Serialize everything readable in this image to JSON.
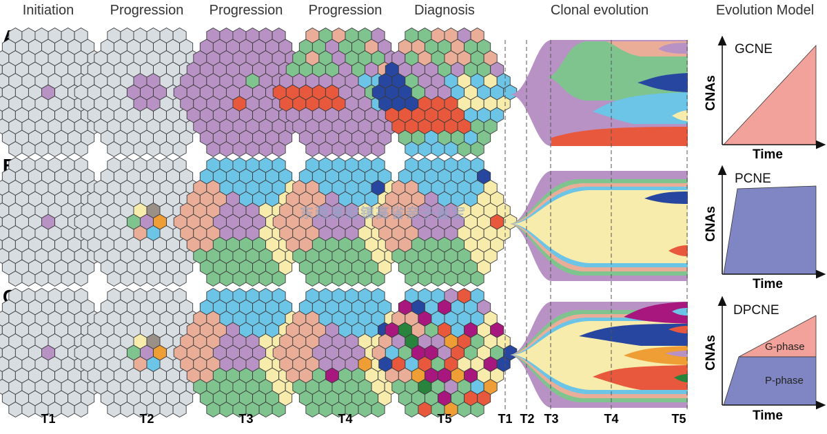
{
  "headers": [
    "Initiation",
    "Progression",
    "Progression",
    "Progression",
    "Diagnosis",
    "Clonal evolution",
    "Evolution Model"
  ],
  "rows": [
    "A",
    "B",
    "C"
  ],
  "time_labels": [
    "T1",
    "T2",
    "T3",
    "T4",
    "T5"
  ],
  "evolution_time_labels": [
    "T1",
    "T2",
    "T3",
    "T4",
    "T5"
  ],
  "models": [
    {
      "name": "GCNE",
      "y_axis": "CNAs",
      "x_axis": "Time"
    },
    {
      "name": "PCNE",
      "y_axis": "CNAs",
      "x_axis": "Time"
    },
    {
      "name": "DPCNE",
      "y_axis": "CNAs",
      "x_axis": "Time",
      "phase_upper": "G-phase",
      "phase_lower": "P-phase"
    }
  ],
  "watermark": "东莞厚街镇高省亲子鉴定",
  "colors": {
    "normal": "#d8dde2",
    "purple": "#b992c5",
    "green": "#7fc48f",
    "salmon": "#eaae98",
    "red": "#e8583c",
    "blue": "#6cc4e6",
    "navy": "#2646a0",
    "yellow": "#f8ecac",
    "gray": "#9b9088",
    "magenta": "#a8177e",
    "orange": "#ef9d35",
    "darkgreen": "#28833d",
    "model_red": "#f2a29a",
    "model_blue": "#7f86c3"
  }
}
